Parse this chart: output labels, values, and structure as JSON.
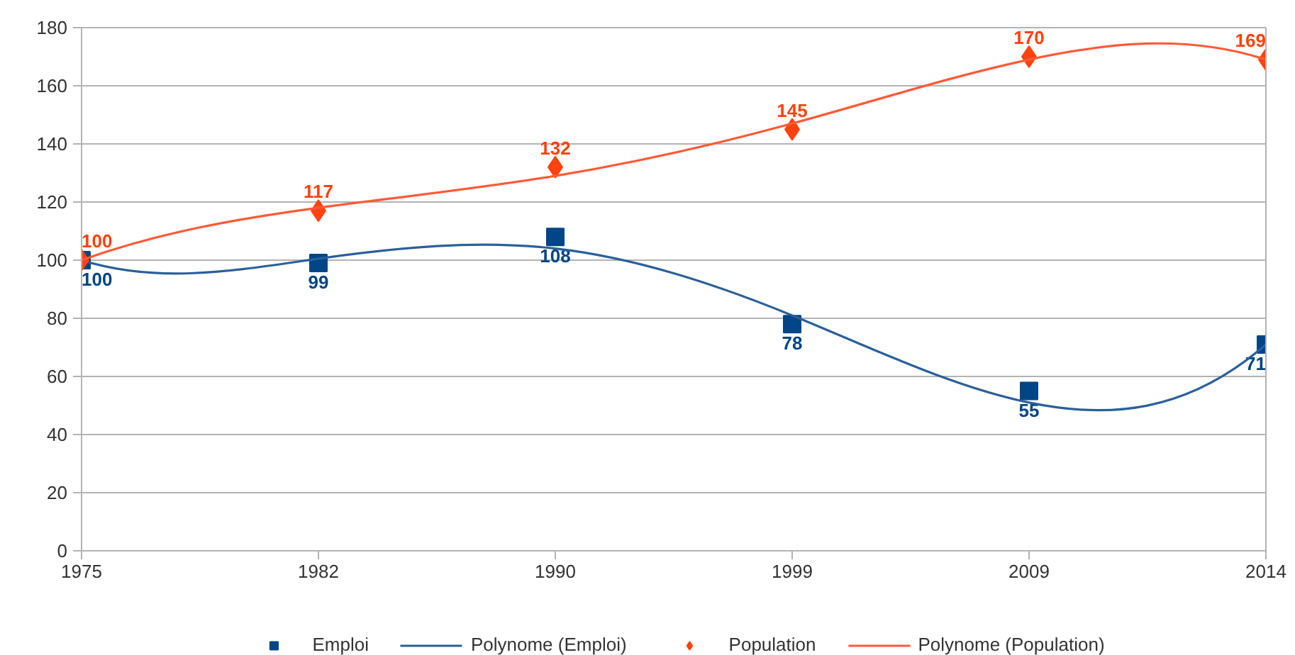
{
  "chart_data": {
    "type": "scatter",
    "categories": [
      "1975",
      "1982",
      "1990",
      "1999",
      "2009",
      "2014"
    ],
    "ylim": [
      0,
      180
    ],
    "yticks": [
      0,
      20,
      40,
      60,
      80,
      100,
      120,
      140,
      160,
      180
    ],
    "grid": "y",
    "legend": "bottom",
    "series": [
      {
        "name": "Emploi",
        "marker": "square",
        "color": "#004586",
        "values": [
          100,
          99,
          108,
          78,
          55,
          71
        ],
        "value_labels": [
          "100",
          "99",
          "108",
          "78",
          "55",
          "71"
        ]
      },
      {
        "name": "Polynome (Emploi)",
        "type": "line",
        "marker": "none",
        "color": "#2a6099",
        "values": [
          100,
          100.5,
          104,
          81,
          51,
          71
        ]
      },
      {
        "name": "Population",
        "marker": "diamond",
        "color": "#ff420e",
        "values": [
          100,
          117,
          132,
          145,
          170,
          169
        ],
        "value_labels": [
          "100",
          "117",
          "132",
          "145",
          "170",
          "169"
        ]
      },
      {
        "name": "Polynome (Population)",
        "type": "line",
        "marker": "none",
        "color": "#ff5a36",
        "values": [
          100,
          118,
          129,
          147,
          169,
          169
        ]
      }
    ]
  }
}
